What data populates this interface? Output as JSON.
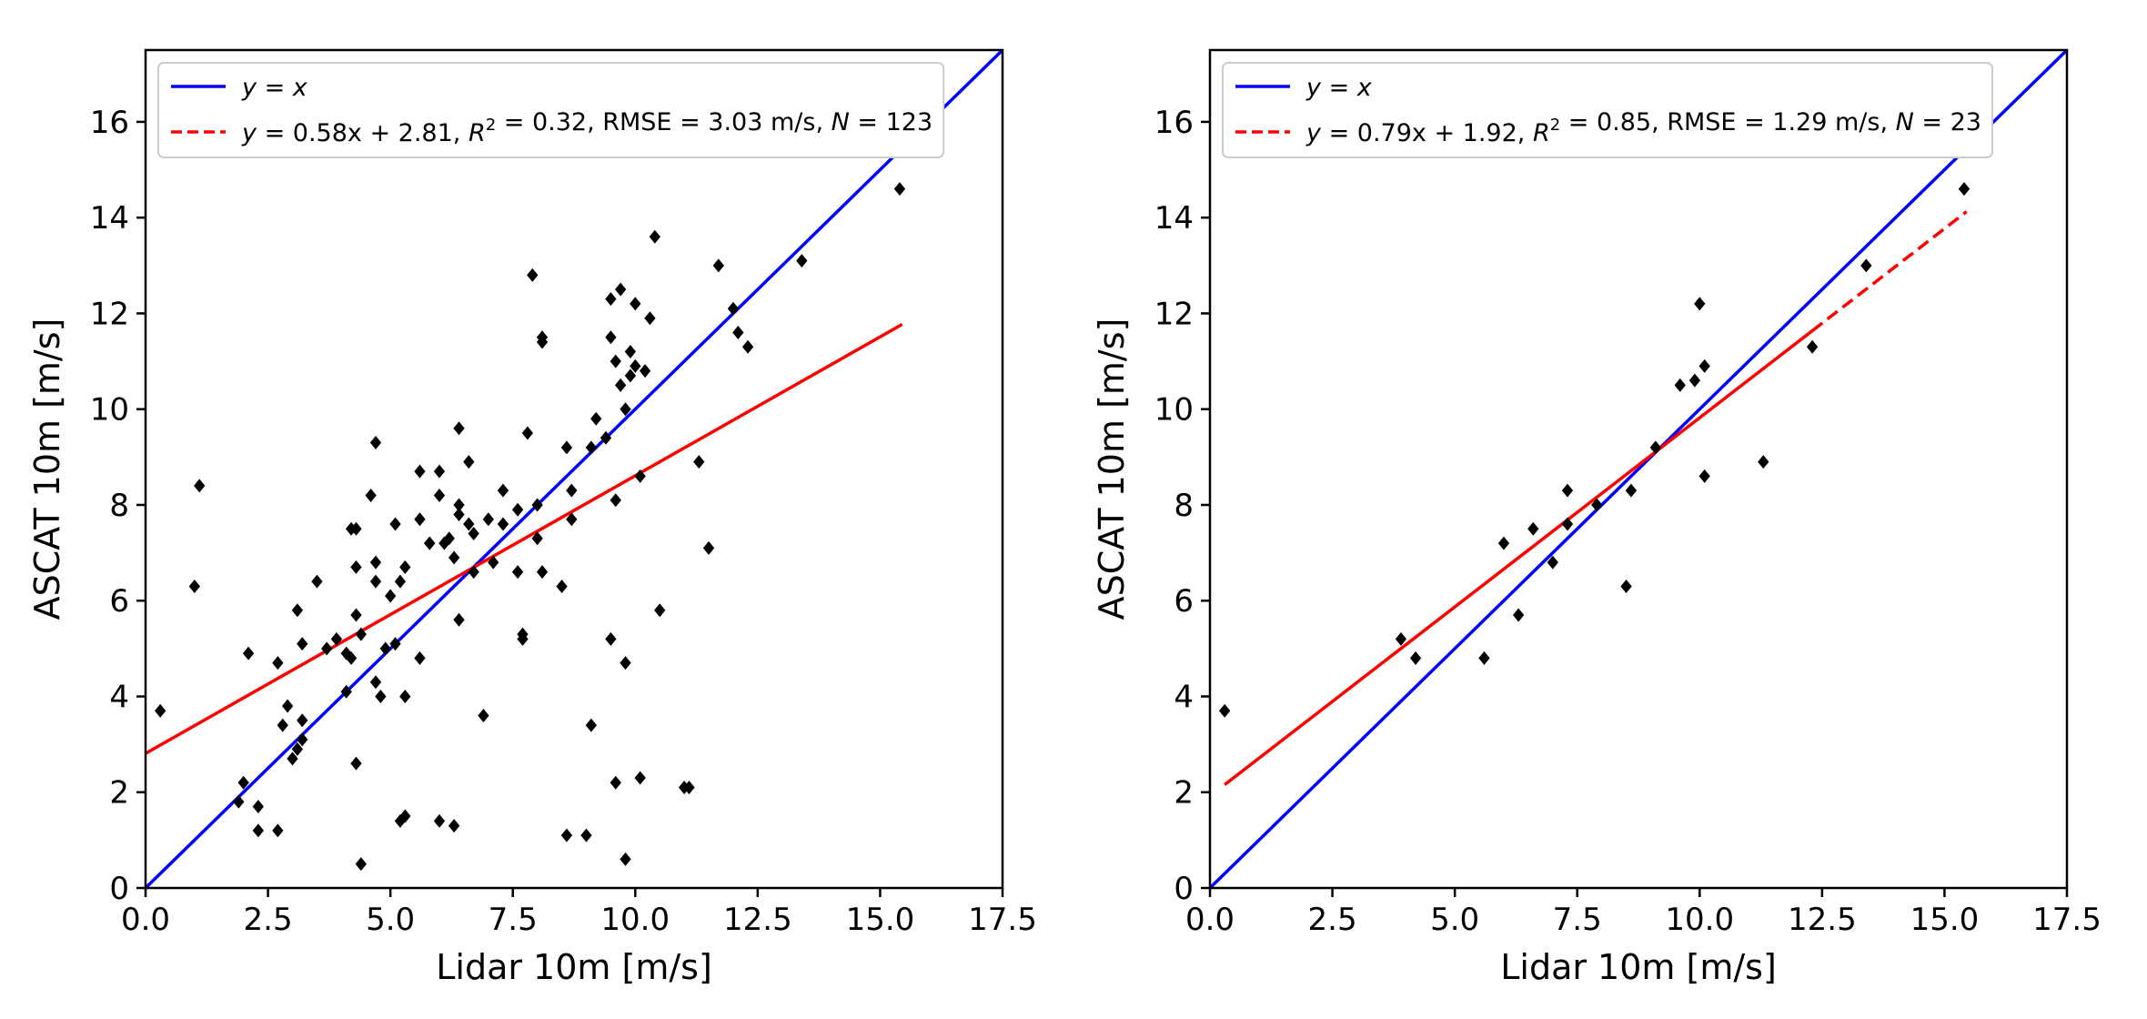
{
  "chart_data": [
    {
      "type": "scatter",
      "xlabel": "Lidar 10m [m/s]",
      "ylabel": "ASCAT 10m [m/s]",
      "xlim": [
        0,
        17.5
      ],
      "ylim": [
        0,
        17.5
      ],
      "xticks": [
        0,
        2.5,
        5,
        7.5,
        10,
        12.5,
        15,
        17.5
      ],
      "xtick_labels": [
        "0.0",
        "2.5",
        "5.0",
        "7.5",
        "10.0",
        "12.5",
        "15.0",
        "17.5"
      ],
      "yticks": [
        0,
        2,
        4,
        6,
        8,
        10,
        12,
        14,
        16
      ],
      "ytick_labels": [
        "0",
        "2",
        "4",
        "6",
        "8",
        "10",
        "12",
        "14",
        "16"
      ],
      "legend_position": "top-left",
      "legend": [
        {
          "label": "y = x",
          "color": "#0000ff",
          "style": "solid"
        },
        {
          "label": "y = 0.58x + 2.81, R² = 0.32, RMSE = 3.03 m/s, N = 123",
          "color": "#ff0000",
          "style": "dashed"
        }
      ],
      "identity_line": {
        "x": [
          0,
          17.5
        ],
        "y": [
          0,
          17.5
        ],
        "color": "#0000ff"
      },
      "fit_line": {
        "slope": 0.58,
        "intercept": 2.81,
        "x_range": [
          0,
          15.45
        ],
        "dashed_from": null,
        "color": "#ff0000"
      },
      "marker_color": "#000000",
      "points": [
        [
          0.3,
          3.7
        ],
        [
          1.0,
          6.3
        ],
        [
          1.1,
          8.4
        ],
        [
          1.9,
          1.8
        ],
        [
          2.0,
          2.2
        ],
        [
          2.1,
          4.9
        ],
        [
          2.3,
          1.7
        ],
        [
          2.3,
          1.2
        ],
        [
          2.7,
          1.2
        ],
        [
          2.7,
          4.7
        ],
        [
          2.8,
          3.4
        ],
        [
          2.9,
          3.8
        ],
        [
          3.0,
          2.7
        ],
        [
          3.1,
          2.9
        ],
        [
          3.2,
          3.1
        ],
        [
          3.2,
          3.5
        ],
        [
          3.2,
          5.1
        ],
        [
          3.1,
          5.8
        ],
        [
          3.5,
          6.4
        ],
        [
          3.7,
          5.0
        ],
        [
          3.9,
          5.2
        ],
        [
          4.1,
          4.1
        ],
        [
          4.1,
          4.9
        ],
        [
          4.2,
          7.5
        ],
        [
          4.2,
          4.8
        ],
        [
          4.3,
          5.7
        ],
        [
          4.3,
          6.7
        ],
        [
          4.3,
          2.6
        ],
        [
          4.4,
          5.3
        ],
        [
          4.4,
          0.5
        ],
        [
          4.6,
          8.2
        ],
        [
          4.7,
          9.3
        ],
        [
          4.7,
          6.4
        ],
        [
          4.7,
          6.8
        ],
        [
          4.7,
          4.3
        ],
        [
          4.8,
          4.0
        ],
        [
          4.9,
          5.0
        ],
        [
          5.0,
          6.1
        ],
        [
          5.1,
          5.1
        ],
        [
          5.1,
          7.6
        ],
        [
          5.2,
          1.4
        ],
        [
          5.2,
          6.4
        ],
        [
          5.3,
          6.7
        ],
        [
          5.3,
          1.5
        ],
        [
          5.3,
          4.0
        ],
        [
          5.6,
          4.8
        ],
        [
          5.6,
          7.7
        ],
        [
          5.6,
          8.7
        ],
        [
          5.8,
          7.2
        ],
        [
          6.0,
          8.2
        ],
        [
          6.0,
          8.7
        ],
        [
          6.0,
          1.4
        ],
        [
          6.1,
          7.2
        ],
        [
          6.2,
          7.3
        ],
        [
          6.3,
          6.9
        ],
        [
          6.3,
          1.3
        ],
        [
          6.4,
          5.6
        ],
        [
          6.4,
          7.8
        ],
        [
          6.4,
          8.0
        ],
        [
          6.4,
          9.6
        ],
        [
          6.6,
          8.9
        ],
        [
          6.6,
          7.6
        ],
        [
          6.7,
          7.4
        ],
        [
          6.9,
          3.6
        ],
        [
          7.0,
          7.7
        ],
        [
          7.1,
          6.8
        ],
        [
          7.3,
          8.3
        ],
        [
          7.3,
          7.6
        ],
        [
          7.6,
          6.6
        ],
        [
          7.6,
          7.9
        ],
        [
          7.7,
          5.2
        ],
        [
          7.7,
          5.3
        ],
        [
          7.8,
          9.5
        ],
        [
          7.9,
          12.8
        ],
        [
          8.0,
          8.0
        ],
        [
          8.0,
          7.3
        ],
        [
          8.1,
          11.4
        ],
        [
          8.1,
          11.5
        ],
        [
          8.1,
          6.6
        ],
        [
          8.5,
          6.3
        ],
        [
          8.6,
          9.2
        ],
        [
          8.7,
          8.3
        ],
        [
          8.7,
          7.7
        ],
        [
          8.6,
          1.1
        ],
        [
          9.0,
          1.1
        ],
        [
          9.1,
          3.4
        ],
        [
          9.1,
          9.2
        ],
        [
          9.2,
          9.8
        ],
        [
          9.4,
          9.4
        ],
        [
          9.5,
          11.5
        ],
        [
          9.5,
          12.3
        ],
        [
          9.5,
          5.2
        ],
        [
          9.6,
          8.1
        ],
        [
          9.6,
          11.0
        ],
        [
          9.6,
          2.2
        ],
        [
          9.7,
          12.5
        ],
        [
          9.7,
          10.5
        ],
        [
          9.8,
          10.0
        ],
        [
          9.8,
          4.7
        ],
        [
          9.8,
          0.6
        ],
        [
          9.9,
          10.7
        ],
        [
          9.9,
          11.2
        ],
        [
          10.0,
          12.2
        ],
        [
          10.0,
          10.9
        ],
        [
          10.1,
          2.3
        ],
        [
          10.1,
          8.6
        ],
        [
          10.2,
          10.8
        ],
        [
          10.3,
          11.9
        ],
        [
          10.4,
          13.6
        ],
        [
          10.5,
          5.8
        ],
        [
          11.0,
          2.1
        ],
        [
          11.1,
          2.1
        ],
        [
          11.3,
          8.9
        ],
        [
          11.5,
          7.1
        ],
        [
          11.7,
          13.0
        ],
        [
          12.0,
          12.1
        ],
        [
          12.1,
          11.6
        ],
        [
          12.3,
          11.3
        ],
        [
          13.4,
          13.1
        ],
        [
          15.4,
          14.6
        ],
        [
          6.7,
          6.6
        ],
        [
          5.8,
          7.2
        ],
        [
          4.3,
          7.5
        ]
      ]
    },
    {
      "type": "scatter",
      "xlabel": "Lidar 10m [m/s]",
      "ylabel": "ASCAT 10m [m/s]",
      "xlim": [
        0,
        17.5
      ],
      "ylim": [
        0,
        17.5
      ],
      "xticks": [
        0,
        2.5,
        5,
        7.5,
        10,
        12.5,
        15,
        17.5
      ],
      "xtick_labels": [
        "0.0",
        "2.5",
        "5.0",
        "7.5",
        "10.0",
        "12.5",
        "15.0",
        "17.5"
      ],
      "yticks": [
        0,
        2,
        4,
        6,
        8,
        10,
        12,
        14,
        16
      ],
      "ytick_labels": [
        "0",
        "2",
        "4",
        "6",
        "8",
        "10",
        "12",
        "14",
        "16"
      ],
      "legend_position": "top-left",
      "legend": [
        {
          "label": "y = x",
          "color": "#0000ff",
          "style": "solid"
        },
        {
          "label": "y = 0.79x + 1.92, R² = 0.85, RMSE = 1.29 m/s, N = 23",
          "color": "#ff0000",
          "style": "dashed"
        }
      ],
      "identity_line": {
        "x": [
          0,
          17.5
        ],
        "y": [
          0,
          17.5
        ],
        "color": "#0000ff"
      },
      "fit_line": {
        "slope": 0.79,
        "intercept": 1.92,
        "x_range": [
          0.3,
          15.45
        ],
        "dashed_from": 12.3,
        "color": "#ff0000"
      },
      "marker_color": "#000000",
      "points": [
        [
          0.3,
          3.7
        ],
        [
          3.9,
          5.2
        ],
        [
          4.2,
          4.8
        ],
        [
          5.6,
          4.8
        ],
        [
          6.0,
          7.2
        ],
        [
          6.3,
          5.7
        ],
        [
          6.6,
          7.5
        ],
        [
          7.0,
          6.8
        ],
        [
          7.3,
          7.6
        ],
        [
          7.3,
          8.3
        ],
        [
          7.9,
          8.0
        ],
        [
          8.5,
          6.3
        ],
        [
          8.6,
          8.3
        ],
        [
          9.1,
          9.2
        ],
        [
          9.6,
          10.5
        ],
        [
          9.9,
          10.6
        ],
        [
          10.0,
          12.2
        ],
        [
          10.1,
          10.9
        ],
        [
          10.1,
          8.6
        ],
        [
          11.3,
          8.9
        ],
        [
          12.3,
          11.3
        ],
        [
          13.4,
          13.0
        ],
        [
          15.4,
          14.6
        ]
      ]
    }
  ]
}
